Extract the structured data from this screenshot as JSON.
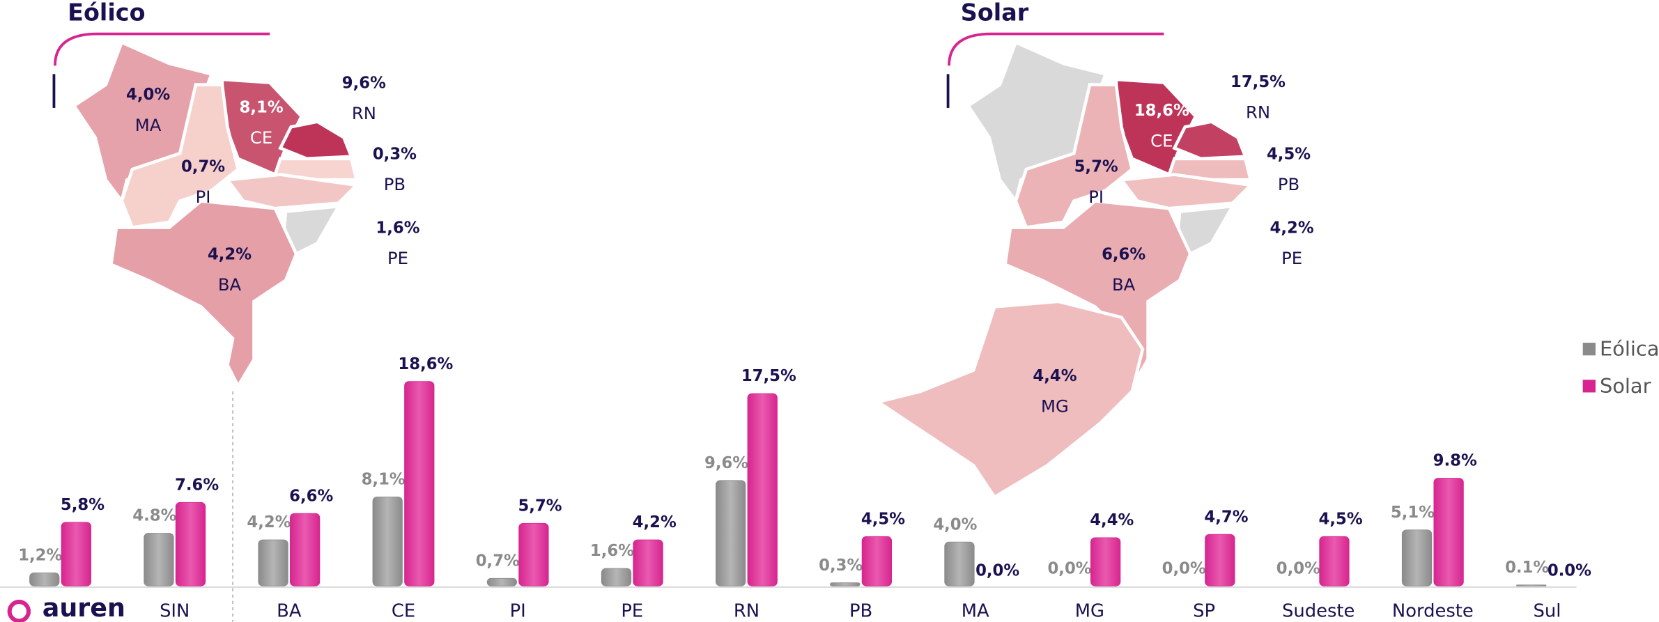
{
  "maps": [
    {
      "title": "Eólico",
      "regions": [
        {
          "state": "MA",
          "value": 4.0,
          "label": "4,0%"
        },
        {
          "state": "CE",
          "value": 8.1,
          "label": "8,1%"
        },
        {
          "state": "RN",
          "value": 9.6,
          "label": "9,6%"
        },
        {
          "state": "PI",
          "value": 0.7,
          "label": "0,7%"
        },
        {
          "state": "PB",
          "value": 0.3,
          "label": "0,3%"
        },
        {
          "state": "PE",
          "value": 1.6,
          "label": "1,6%"
        },
        {
          "state": "BA",
          "value": 4.2,
          "label": "4,2%"
        }
      ]
    },
    {
      "title": "Solar",
      "regions": [
        {
          "state": "CE",
          "value": 18.6,
          "label": "18,6%"
        },
        {
          "state": "RN",
          "value": 17.5,
          "label": "17,5%"
        },
        {
          "state": "PI",
          "value": 5.7,
          "label": "5,7%"
        },
        {
          "state": "PB",
          "value": 4.5,
          "label": "4,5%"
        },
        {
          "state": "PE",
          "value": 4.2,
          "label": "4,2%"
        },
        {
          "state": "BA",
          "value": 6.6,
          "label": "6,6%"
        },
        {
          "state": "MG",
          "value": 4.4,
          "label": "4,4%"
        }
      ]
    }
  ],
  "logo": "auren",
  "chart_data": {
    "type": "bar",
    "categories": [
      null,
      "SIN",
      "BA",
      "CE",
      "PI",
      "PE",
      "RN",
      "PB",
      "MA",
      "MG",
      "SP",
      "Sudeste",
      "Nordeste",
      "Sul"
    ],
    "series": [
      {
        "name": "Eólica",
        "color": "#8a8a8a",
        "values": [
          1.2,
          4.8,
          4.2,
          8.1,
          0.7,
          1.6,
          9.6,
          0.3,
          4.0,
          0.0,
          0.0,
          0.0,
          5.1,
          0.1
        ],
        "value_labels": [
          "1,2%",
          "4.8%",
          "4,2%",
          "8,1%",
          "0,7%",
          "1,6%",
          "9,6%",
          "0,3%",
          "4,0%",
          "0,0%",
          "0,0%",
          "0,0%",
          "5,1%",
          "0.1%"
        ]
      },
      {
        "name": "Solar",
        "color": "#d6258f",
        "values": [
          5.8,
          7.6,
          6.6,
          18.6,
          5.7,
          4.2,
          17.5,
          4.5,
          0.0,
          4.4,
          4.7,
          4.5,
          9.8,
          0.0
        ],
        "value_labels": [
          "5,8%",
          "7.6%",
          "6,6%",
          "18,6%",
          "5,7%",
          "4,2%",
          "17,5%",
          "4,5%",
          "0,0%",
          "4,4%",
          "4,7%",
          "4,5%",
          "9.8%",
          "0.0%"
        ]
      }
    ],
    "legend": "right"
  }
}
